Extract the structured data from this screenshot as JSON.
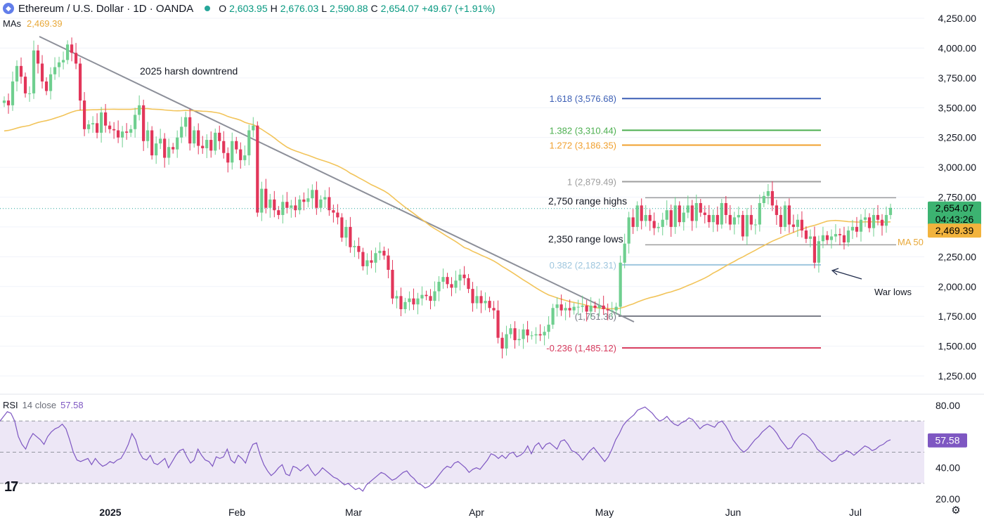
{
  "header": {
    "symbol": "Ethereum / U.S. Dollar · 1D · OANDA",
    "logo_icon": "ethereum-icon",
    "o_label": "O",
    "o_value": "2,603.95",
    "h_label": "H",
    "h_value": "2,676.03",
    "l_label": "L",
    "l_value": "2,590.88",
    "c_label": "C",
    "c_value": "2,654.07",
    "change": "+49.67 (+1.91%)"
  },
  "mas": {
    "label": "MAs",
    "value": "2,469.39"
  },
  "rsi_header": {
    "label": "RSI",
    "params": "14 close",
    "value": "57.58"
  },
  "price_tags": {
    "last": "2,654.07",
    "countdown": "04:43:26",
    "ma": "2,469.39",
    "rsi": "57.58"
  },
  "annotations": {
    "downtrend": "2025 harsh downtrend",
    "range_highs": "2,750 range highs",
    "range_lows": "2,350 range lows",
    "war_lows": "War lows",
    "ma50": "MA 50"
  },
  "fib_levels": [
    {
      "label": "1.618 (3,576.68)",
      "value": 3576.68,
      "color": "#3c5fb5"
    },
    {
      "label": "1.382 (3,310.44)",
      "value": 3310.44,
      "color": "#4caf50"
    },
    {
      "label": "1.272 (3,186.35)",
      "value": 3186.35,
      "color": "#f0a02e"
    },
    {
      "label": "1 (2,879.49)",
      "value": 2879.49,
      "color": "#9e9e9e"
    },
    {
      "label": "0.382 (2,182.31)",
      "value": 2182.31,
      "color": "#9ec6de"
    },
    {
      "label": "(1,751.36)",
      "value": 1751.36,
      "color": "#787b86"
    },
    {
      "label": "-0.236 (1,485.12)",
      "value": 1485.12,
      "color": "#d6395c"
    }
  ],
  "colors": {
    "up": "#26a69a",
    "up_fill": "#6fcf8f",
    "down": "#e2365a",
    "ma": "#f2c45a",
    "rsi": "#7e57c2",
    "rsi_band": "#ede7f6",
    "trend": "#8c8f99"
  },
  "chart_data": [
    {
      "type": "candlestick",
      "title": "Ethereum / U.S. Dollar · 1D · OANDA",
      "x_ticks": [
        "2025",
        "Feb",
        "Mar",
        "Apr",
        "May",
        "Jun",
        "Jul"
      ],
      "y_ticks": [
        "4,250.00",
        "4,000.00",
        "3,750.00",
        "3,500.00",
        "3,250.00",
        "3,000.00",
        "2,750.00",
        "2,500.00",
        "2,250.00",
        "2,000.00",
        "1,750.00",
        "1,500.00",
        "1,250.00"
      ],
      "ylim": [
        1200,
        4270
      ],
      "close_series": [
        3560,
        3520,
        3720,
        3850,
        3760,
        3620,
        3620,
        3980,
        3870,
        3720,
        3640,
        3780,
        3840,
        3880,
        3900,
        4030,
        3960,
        3870,
        3560,
        3320,
        3360,
        3370,
        3290,
        3460,
        3350,
        3320,
        3310,
        3250,
        3300,
        3290,
        3320,
        3440,
        3520,
        3220,
        3310,
        3100,
        3200,
        3240,
        3080,
        3170,
        3150,
        3250,
        3340,
        3420,
        3200,
        3310,
        3180,
        3160,
        3230,
        3140,
        3290,
        3220,
        3120,
        3040,
        3220,
        3150,
        3060,
        3100,
        3310,
        3350,
        2620,
        2820,
        2660,
        2730,
        2640,
        2600,
        2710,
        2660,
        2680,
        2640,
        2730,
        2710,
        2740,
        2810,
        2660,
        2730,
        2750,
        2640,
        2620,
        2580,
        2410,
        2500,
        2330,
        2340,
        2290,
        2170,
        2220,
        2200,
        2280,
        2300,
        2260,
        2140,
        1900,
        1920,
        1810,
        1870,
        1900,
        1850,
        1900,
        1930,
        1920,
        1880,
        1960,
        2040,
        2080,
        2020,
        1990,
        2050,
        2100,
        2070,
        1980,
        1860,
        1920,
        1860,
        1880,
        1820,
        1800,
        1570,
        1480,
        1600,
        1650,
        1550,
        1560,
        1640,
        1590,
        1590,
        1600,
        1590,
        1620,
        1680,
        1820,
        1850,
        1800,
        1820,
        1800,
        1830,
        1830,
        1840,
        1790,
        1840,
        1820,
        1840,
        1810,
        1800,
        1800,
        1830,
        2200,
        2360,
        2580,
        2500,
        2680,
        2550,
        2600,
        2550,
        2490,
        2500,
        2560,
        2640,
        2500,
        2680,
        2540,
        2620,
        2680,
        2550,
        2700,
        2620,
        2600,
        2540,
        2600,
        2520,
        2700,
        2600,
        2520,
        2580,
        2600,
        2420,
        2600,
        2520,
        2520,
        2700,
        2760,
        2800,
        2680,
        2600,
        2500,
        2680,
        2520,
        2500,
        2560,
        2470,
        2400,
        2420,
        2200,
        2380,
        2430,
        2390,
        2420,
        2440,
        2430,
        2370,
        2470,
        2500,
        2460,
        2560,
        2580,
        2490,
        2600,
        2560,
        2510,
        2600,
        2660
      ],
      "series": [
        {
          "name": "MA 50",
          "last": 2469.39
        }
      ],
      "levels": {
        "range_highs": 2750,
        "range_lows": 2350,
        "fib": [
          3576.68,
          3310.44,
          3186.35,
          2879.49,
          2182.31,
          1751.36,
          1485.12
        ]
      },
      "last_close": 2654.07
    },
    {
      "type": "line",
      "title": "RSI 14 close",
      "y_ticks": [
        "80.00",
        "40.00",
        "20.00"
      ],
      "ylim": [
        20,
        80
      ],
      "bands": [
        30,
        50,
        70
      ],
      "values": [
        70,
        73,
        76,
        75,
        70,
        60,
        55,
        52,
        58,
        62,
        60,
        58,
        55,
        60,
        63,
        65,
        66,
        68,
        65,
        58,
        50,
        45,
        44,
        45,
        46,
        42,
        46,
        43,
        41,
        42,
        44,
        43,
        45,
        46,
        50,
        55,
        62,
        58,
        50,
        46,
        45,
        48,
        43,
        42,
        44,
        46,
        40,
        44,
        48,
        51,
        52,
        47,
        43,
        45,
        52,
        48,
        45,
        44,
        41,
        47,
        46,
        47,
        52,
        45,
        43,
        48,
        46,
        43,
        50,
        55,
        56,
        48,
        42,
        38,
        35,
        37,
        40,
        42,
        36,
        35,
        41,
        40,
        38,
        40,
        42,
        38,
        35,
        37,
        40,
        38,
        36,
        34,
        33,
        31,
        29,
        30,
        28,
        26,
        27,
        25,
        29,
        31,
        33,
        35,
        37,
        36,
        34,
        32,
        33,
        35,
        37,
        38,
        35,
        33,
        30,
        29,
        27,
        28,
        30,
        33,
        36,
        39,
        41,
        40,
        43,
        44,
        42,
        40,
        37,
        39,
        40,
        39,
        42,
        45,
        49,
        48,
        46,
        48,
        46,
        49,
        50,
        47,
        48,
        50,
        54,
        49,
        54,
        56,
        52,
        55,
        56,
        54,
        52,
        57,
        58,
        55,
        51,
        50,
        48,
        45,
        48,
        51,
        53,
        50,
        47,
        44,
        47,
        52,
        58,
        62,
        67,
        70,
        72,
        74,
        77,
        78,
        79,
        77,
        75,
        72,
        70,
        71,
        73,
        70,
        68,
        67,
        69,
        70,
        72,
        71,
        68,
        65,
        67,
        68,
        67,
        66,
        69,
        70,
        67,
        63,
        58,
        55,
        52,
        50,
        52,
        55,
        58,
        60,
        63,
        65,
        67,
        65,
        62,
        58,
        55,
        52,
        53,
        57,
        60,
        62,
        61,
        59,
        56,
        52,
        50,
        48,
        46,
        44,
        45,
        48,
        49,
        51,
        50,
        48,
        50,
        52,
        54,
        53,
        51,
        52,
        54,
        55,
        57,
        58
      ]
    }
  ]
}
